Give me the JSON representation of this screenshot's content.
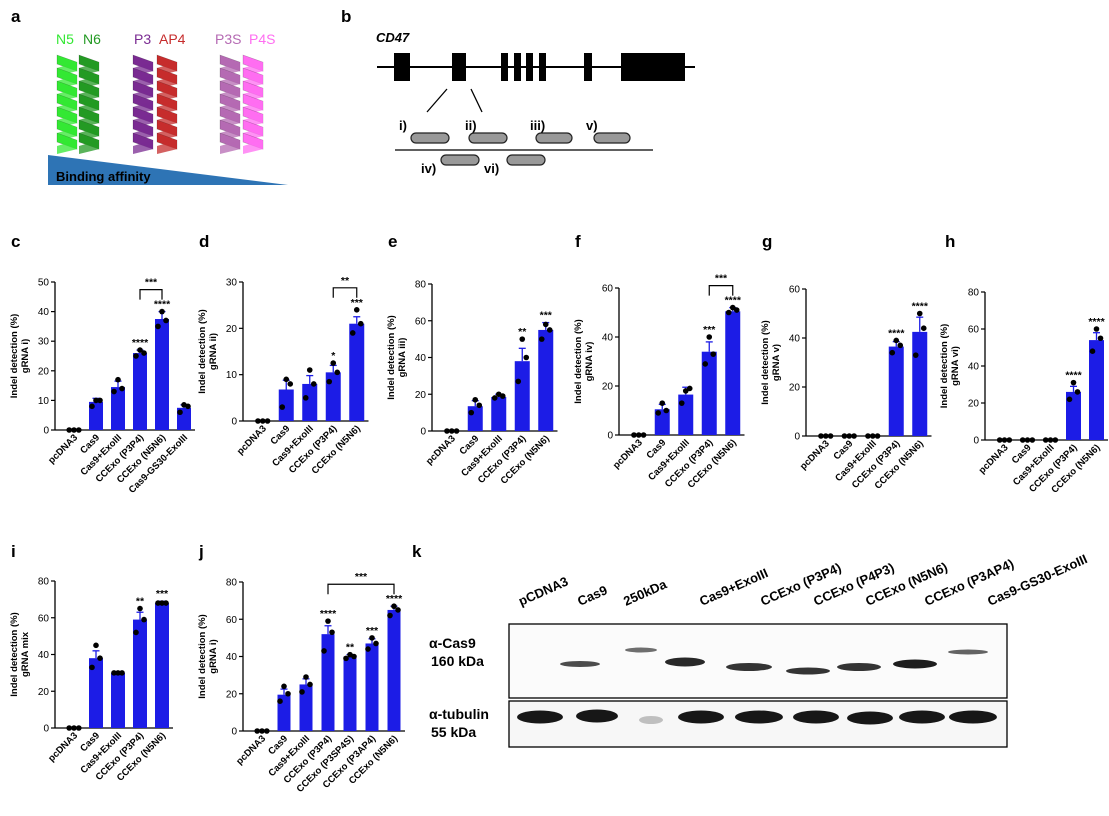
{
  "colors": {
    "bar": "#1c1ce6",
    "axis": "#000000",
    "n5": "#33e833",
    "n6": "#239a23",
    "p3": "#7a2b92",
    "ap4": "#c62c2c",
    "p3s": "#b56ab3",
    "p4s": "#ff6df1",
    "affinity": "#2e74b5"
  },
  "panel_a": {
    "letter": "a",
    "pairs": [
      {
        "left": "N5",
        "right": "N6"
      },
      {
        "left": "P3",
        "right": "AP4"
      },
      {
        "left": "P3S",
        "right": "P4S"
      }
    ],
    "affinity_label": "Binding affinity"
  },
  "panel_b": {
    "letter": "b",
    "gene": "CD47",
    "guides_top": [
      "i)",
      "ii)",
      "iii)",
      "v)"
    ],
    "guides_bottom": [
      "iv)",
      "vi)"
    ]
  },
  "panel_k": {
    "letter": "k",
    "lanes": [
      "pCDNA3",
      "Cas9",
      "250kDa",
      "Cas9+ExoIII",
      "CCExo (P3P4)",
      "CCExo (P4P3)",
      "CCExo (N5N6)",
      "CCExo (P3AP4)",
      "Cas9-GS30-ExoIII"
    ],
    "blot1_label": "α-Cas9",
    "blot1_size": "160 kDa",
    "blot2_label": "α-tubulin",
    "blot2_size": "55 kDa"
  },
  "chart_data": [
    {
      "id": "c",
      "type": "bar",
      "ylabel": "Indel detection (%)",
      "ylabel2": "gRNA i)",
      "ylim": [
        0,
        50
      ],
      "ticks": [
        0,
        10,
        20,
        30,
        40,
        50
      ],
      "categories": [
        "pcDNA3",
        "Cas9",
        "Cas9+ExoIII",
        "CCExo (P3P4)",
        "CCExo (N5N6)",
        "Cas9-GS30-ExoIII"
      ],
      "values": [
        0,
        9.5,
        14.5,
        26,
        37.5,
        7.5
      ],
      "errors": [
        0,
        1.2,
        2,
        1,
        2.5,
        1
      ],
      "points": [
        [
          0,
          0,
          0
        ],
        [
          8,
          10,
          10
        ],
        [
          13,
          14,
          17
        ],
        [
          25,
          26,
          27
        ],
        [
          35,
          37,
          40
        ],
        [
          6,
          8,
          8.5
        ]
      ],
      "sig": [
        "",
        "",
        "",
        "****",
        "****",
        ""
      ],
      "bracket": {
        "from": 3,
        "to": 4,
        "label": "***"
      }
    },
    {
      "id": "d",
      "type": "bar",
      "ylabel": "Indel detection (%)",
      "ylabel2": "gRNA ii)",
      "ylim": [
        0,
        30
      ],
      "ticks": [
        0,
        10,
        20,
        30
      ],
      "categories": [
        "pcDNA3",
        "Cas9",
        "Cas9+ExoIII",
        "CCExo (P3P4)",
        "CCExo (N5N6)"
      ],
      "values": [
        0,
        6.8,
        8,
        10.5,
        21
      ],
      "errors": [
        0,
        2,
        1.8,
        1.5,
        1.5
      ],
      "points": [
        [
          0,
          0,
          0
        ],
        [
          3,
          8,
          9
        ],
        [
          5,
          8,
          11
        ],
        [
          8.5,
          10.5,
          12.5
        ],
        [
          19,
          21,
          24
        ]
      ],
      "sig": [
        "",
        "",
        "",
        "*",
        "***"
      ],
      "bracket": {
        "from": 3,
        "to": 4,
        "label": "**"
      }
    },
    {
      "id": "e",
      "type": "bar",
      "ylabel": "Indel detection (%)",
      "ylabel2": "gRNA iii)",
      "ylim": [
        0,
        80
      ],
      "ticks": [
        0,
        20,
        40,
        60,
        80
      ],
      "categories": [
        "pcDNA3",
        "Cas9",
        "Cas9+ExoIII",
        "CCExo (P3P4)",
        "CCExo (N5N6)"
      ],
      "values": [
        0,
        13.5,
        18.5,
        38,
        55
      ],
      "errors": [
        0,
        3,
        1.5,
        7,
        4
      ],
      "points": [
        [
          0,
          0,
          0
        ],
        [
          10,
          14,
          17
        ],
        [
          18,
          19,
          20
        ],
        [
          27,
          40,
          50
        ],
        [
          50,
          55,
          58
        ]
      ],
      "sig": [
        "",
        "",
        "",
        "**",
        "***"
      ],
      "bracket": null
    },
    {
      "id": "f",
      "type": "bar",
      "ylabel": "Indel detection (%)",
      "ylabel2": "gRNA iv)",
      "ylim": [
        0,
        60
      ],
      "ticks": [
        0,
        20,
        40,
        60
      ],
      "categories": [
        "pcDNA3",
        "Cas9",
        "Cas9+ExoIII",
        "CCExo (P3P4)",
        "CCExo (N5N6)"
      ],
      "values": [
        0,
        10.5,
        16.5,
        34,
        50.5
      ],
      "errors": [
        0,
        2,
        3,
        4,
        1.5
      ],
      "points": [
        [
          0,
          0,
          0
        ],
        [
          9,
          10,
          13
        ],
        [
          13,
          19,
          18
        ],
        [
          29,
          33,
          40
        ],
        [
          50,
          51,
          52
        ]
      ],
      "sig": [
        "",
        "",
        "",
        "***",
        "****"
      ],
      "bracket": {
        "from": 3,
        "to": 4,
        "label": "***"
      }
    },
    {
      "id": "g",
      "type": "bar",
      "ylabel": "Indel detection (%)",
      "ylabel2": "gRNA v)",
      "ylim": [
        0,
        60
      ],
      "ticks": [
        0,
        20,
        40,
        60
      ],
      "categories": [
        "pcDNA3",
        "Cas9",
        "Cas9+ExoIII",
        "CCExo (P3P4)",
        "CCExo (N5N6)"
      ],
      "values": [
        0,
        0,
        0,
        36.5,
        42.5
      ],
      "errors": [
        0,
        0,
        0,
        2,
        6
      ],
      "points": [
        [
          0,
          0,
          0
        ],
        [
          0,
          0,
          0
        ],
        [
          0,
          0,
          0
        ],
        [
          34,
          37,
          39
        ],
        [
          33,
          44,
          50
        ]
      ],
      "sig": [
        "",
        "",
        "",
        "****",
        "****"
      ],
      "bracket": null
    },
    {
      "id": "h",
      "type": "bar",
      "ylabel": "Indel detection (%)",
      "ylabel2": "gRNA vi)",
      "ylim": [
        0,
        80
      ],
      "ticks": [
        0,
        20,
        40,
        60,
        80
      ],
      "categories": [
        "pcDNA3",
        "Cas9",
        "Cas9+ExoIII",
        "CCExo (P3P4)",
        "CCExo (N5N6)"
      ],
      "values": [
        0,
        0,
        0,
        26,
        54
      ],
      "errors": [
        0,
        0,
        0,
        3,
        4
      ],
      "points": [
        [
          0,
          0,
          0
        ],
        [
          0,
          0,
          0
        ],
        [
          0,
          0,
          0
        ],
        [
          22,
          26,
          31
        ],
        [
          48,
          55,
          60
        ]
      ],
      "sig": [
        "",
        "",
        "",
        "****",
        "****"
      ],
      "bracket": null
    },
    {
      "id": "i",
      "type": "bar",
      "ylabel": "Indel detection (%)",
      "ylabel2": "gRNA mix",
      "ylim": [
        0,
        80
      ],
      "ticks": [
        0,
        20,
        40,
        60,
        80
      ],
      "categories": [
        "pcDNA3",
        "Cas9",
        "Cas9+ExoIII",
        "CCExo (P3P4)",
        "CCExo (N5N6)"
      ],
      "values": [
        0,
        38,
        30,
        59,
        68
      ],
      "errors": [
        0,
        4,
        0.5,
        4,
        1
      ],
      "points": [
        [
          0,
          0,
          0
        ],
        [
          33,
          38,
          45
        ],
        [
          30,
          30,
          30
        ],
        [
          52,
          59,
          65
        ],
        [
          68,
          68,
          68
        ]
      ],
      "sig": [
        "",
        "",
        "",
        "**",
        "***"
      ],
      "bracket": null
    },
    {
      "id": "j",
      "type": "bar",
      "ylabel": "Indel detection (%)",
      "ylabel2": "gRNA i)",
      "ylim": [
        0,
        80
      ],
      "ticks": [
        0,
        20,
        40,
        60,
        80
      ],
      "categories": [
        "pcDNA3",
        "Cas9",
        "Cas9+ExoIII",
        "CCExo (P3P4)",
        "CCExo (P3SP4S)",
        "CCExo (P3AP4)",
        "CCExo (N5N6)"
      ],
      "values": [
        0,
        19.5,
        25,
        52,
        40,
        47,
        65
      ],
      "errors": [
        0,
        3,
        3,
        4.5,
        1,
        2.5,
        2
      ],
      "points": [
        [
          0,
          0,
          0
        ],
        [
          16,
          20,
          24
        ],
        [
          21,
          25,
          29
        ],
        [
          43,
          53,
          59
        ],
        [
          39,
          40,
          41
        ],
        [
          44,
          47,
          50
        ],
        [
          62,
          65,
          67
        ]
      ],
      "sig": [
        "",
        "",
        "",
        "****",
        "**",
        "***",
        "****"
      ],
      "bracket": {
        "from": 3,
        "to": 6,
        "label": "***"
      }
    }
  ]
}
